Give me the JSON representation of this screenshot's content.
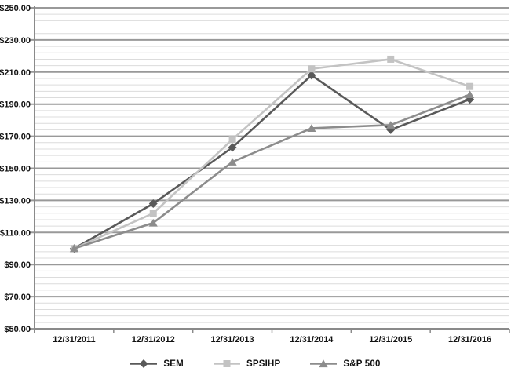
{
  "chart_data": {
    "type": "line",
    "title": "",
    "categories": [
      "12/31/2011",
      "12/31/2012",
      "12/31/2013",
      "12/31/2014",
      "12/31/2015",
      "12/31/2016"
    ],
    "series": [
      {
        "name": "SEM",
        "marker": "diamond",
        "color": "#595959",
        "values": [
          100.0,
          128.0,
          163.0,
          208.0,
          174.0,
          193.0
        ]
      },
      {
        "name": "SPSIHP",
        "marker": "square",
        "color": "#c3c3c3",
        "values": [
          100.0,
          122.0,
          168.0,
          212.0,
          218.0,
          201.0
        ]
      },
      {
        "name": "S&P 500",
        "marker": "triangle",
        "color": "#8c8c8c",
        "values": [
          100.0,
          116.0,
          154.0,
          175.0,
          177.0,
          196.0
        ]
      }
    ],
    "y_axis": {
      "min": 50,
      "max": 250,
      "major_step": 20,
      "minor_step": 4,
      "tick_labels": [
        "$50.00",
        "$70.00",
        "$90.00",
        "$110.00",
        "$130.00",
        "$150.00",
        "$170.00",
        "$190.00",
        "$210.00",
        "$230.00",
        "$250.00"
      ]
    },
    "x_axis": {
      "tick_labels": [
        "12/31/2011",
        "12/31/2012",
        "12/31/2013",
        "12/31/2014",
        "12/31/2015",
        "12/31/2016"
      ]
    },
    "legend_position": "bottom",
    "grid": true
  },
  "colors": {
    "background": "#ffffff",
    "minor_gridline": "#dcdcdc",
    "major_gridline": "#999999",
    "axis_line": "#8a8a8a",
    "tick_mark": "#8a8a8a",
    "label_text": "#111111"
  }
}
